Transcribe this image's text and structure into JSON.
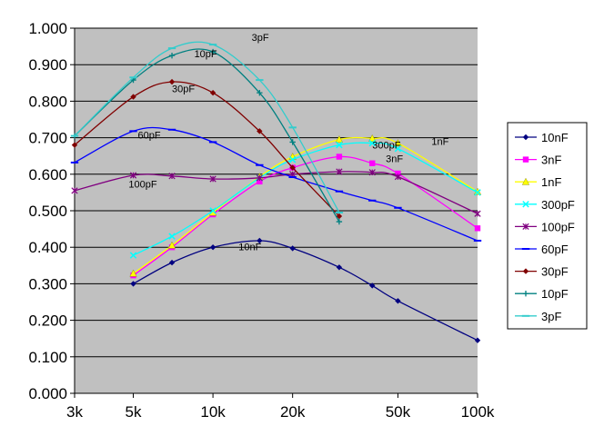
{
  "chart_data": {
    "type": "line",
    "x_scale": "log",
    "xlim": [
      3000,
      100000
    ],
    "ylim": [
      0,
      1
    ],
    "grid": "horizontal",
    "legend_position": "right",
    "plot_background": "#c0c0c0",
    "x_tick_values": [
      3000,
      5000,
      10000,
      20000,
      50000,
      100000
    ],
    "x_tick_labels": [
      "3k",
      "5k",
      "10k",
      "20k",
      "50k",
      "100k"
    ],
    "y_tick_values": [
      0,
      0.1,
      0.2,
      0.3,
      0.4,
      0.5,
      0.6,
      0.7,
      0.8,
      0.9,
      1.0
    ],
    "y_tick_labels": [
      "0.000",
      "0.100",
      "0.200",
      "0.300",
      "0.400",
      "0.500",
      "0.600",
      "0.700",
      "0.800",
      "0.900",
      "1.000"
    ],
    "series": [
      {
        "name": "10nF",
        "color": "#000080",
        "marker": "diamond",
        "x": [
          5000,
          7000,
          10000,
          15000,
          20000,
          30000,
          40000,
          50000,
          100000
        ],
        "y": [
          0.3,
          0.358,
          0.4,
          0.418,
          0.397,
          0.345,
          0.295,
          0.253,
          0.145
        ]
      },
      {
        "name": "3nF",
        "color": "#ff00ff",
        "marker": "square",
        "x": [
          5000,
          7000,
          10000,
          15000,
          20000,
          30000,
          40000,
          50000,
          100000
        ],
        "y": [
          0.323,
          0.4,
          0.49,
          0.58,
          0.618,
          0.648,
          0.63,
          0.602,
          0.452
        ]
      },
      {
        "name": "1nF",
        "color": "#ffff00",
        "marker": "triangle",
        "x": [
          5000,
          7000,
          10000,
          15000,
          20000,
          30000,
          40000,
          50000,
          100000
        ],
        "y": [
          0.328,
          0.405,
          0.495,
          0.593,
          0.648,
          0.695,
          0.698,
          0.685,
          0.552
        ]
      },
      {
        "name": "300pF",
        "color": "#00ffff",
        "marker": "x",
        "x": [
          5000,
          7000,
          10000,
          15000,
          20000,
          30000,
          40000,
          50000,
          100000
        ],
        "y": [
          0.378,
          0.43,
          0.5,
          0.59,
          0.64,
          0.68,
          0.685,
          0.67,
          0.55
        ]
      },
      {
        "name": "100pF",
        "color": "#800080",
        "marker": "star",
        "x": [
          3000,
          5000,
          7000,
          10000,
          15000,
          20000,
          30000,
          40000,
          50000,
          100000
        ],
        "y": [
          0.555,
          0.597,
          0.595,
          0.587,
          0.59,
          0.6,
          0.607,
          0.605,
          0.593,
          0.492
        ]
      },
      {
        "name": "60pF",
        "color": "#0000ff",
        "marker": "dash",
        "x": [
          3000,
          5000,
          7000,
          10000,
          15000,
          20000,
          30000,
          40000,
          50000,
          100000
        ],
        "y": [
          0.632,
          0.718,
          0.722,
          0.688,
          0.625,
          0.592,
          0.553,
          0.528,
          0.508,
          0.418
        ]
      },
      {
        "name": "30pF",
        "color": "#800000",
        "marker": "diamond",
        "x": [
          3000,
          5000,
          7000,
          10000,
          15000,
          20000,
          30000
        ],
        "y": [
          0.68,
          0.812,
          0.853,
          0.823,
          0.718,
          0.618,
          0.485
        ]
      },
      {
        "name": "10pF",
        "color": "#008080",
        "marker": "plus",
        "x": [
          3000,
          5000,
          7000,
          10000,
          15000,
          20000,
          30000
        ],
        "y": [
          0.705,
          0.858,
          0.925,
          0.935,
          0.823,
          0.688,
          0.47
        ]
      },
      {
        "name": "3pF",
        "color": "#33cccc",
        "marker": "dash",
        "x": [
          3000,
          5000,
          7000,
          10000,
          15000,
          20000,
          30000
        ],
        "y": [
          0.705,
          0.865,
          0.945,
          0.955,
          0.858,
          0.728,
          0.495
        ]
      }
    ],
    "annotations": [
      {
        "text": "3pF",
        "x": 14000,
        "y": 0.965
      },
      {
        "text": "10pF",
        "x": 8500,
        "y": 0.92
      },
      {
        "text": "30pF",
        "x": 7000,
        "y": 0.825
      },
      {
        "text": "60pF",
        "x": 5200,
        "y": 0.698
      },
      {
        "text": "100pF",
        "x": 4800,
        "y": 0.563
      },
      {
        "text": "10nF",
        "x": 12500,
        "y": 0.392
      },
      {
        "text": "300pF",
        "x": 40000,
        "y": 0.67
      },
      {
        "text": "3nF",
        "x": 45000,
        "y": 0.633
      },
      {
        "text": "1nF",
        "x": 67000,
        "y": 0.68
      }
    ]
  }
}
